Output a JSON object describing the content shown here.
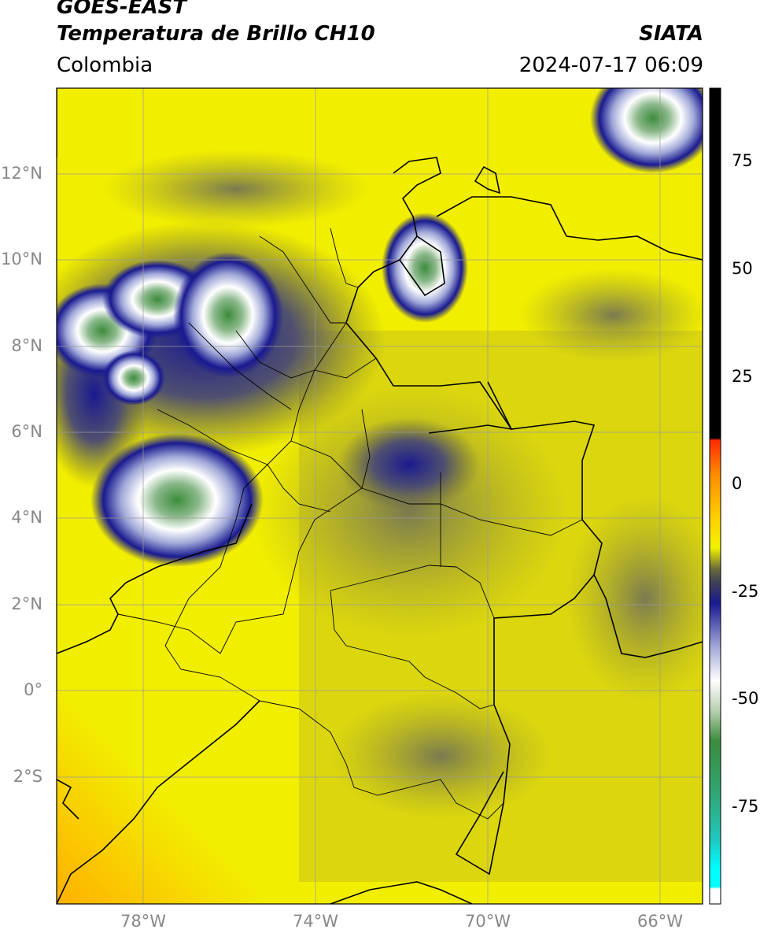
{
  "header": {
    "satellite": "GOES-EAST",
    "product": "Temperatura de Brillo CH10",
    "agency": "SIATA",
    "region": "Colombia",
    "datetime": "2024-07-17 06:09"
  },
  "axes": {
    "lat_labels": [
      "12°N",
      "10°N",
      "8°N",
      "6°N",
      "4°N",
      "2°N",
      "0°",
      "2°S"
    ],
    "lon_labels": [
      "78°W",
      "74°W",
      "70°W",
      "66°W"
    ],
    "lat_range": [
      -4.6,
      14
    ],
    "lon_range": [
      -80,
      -65
    ]
  },
  "colorbar": {
    "ticks": [
      "75",
      "50",
      "25",
      "0",
      "-25",
      "-50",
      "-75"
    ],
    "range": [
      -100,
      90
    ],
    "stops": [
      {
        "t": 90,
        "c": "#000000"
      },
      {
        "t": 8.5,
        "c": "#000000"
      },
      {
        "t": 8,
        "c": "#ff2a00"
      },
      {
        "t": 0,
        "c": "#ff8c00"
      },
      {
        "t": -10,
        "c": "#ffd000"
      },
      {
        "t": -17,
        "c": "#f2f200"
      },
      {
        "t": -22,
        "c": "#6a6a3a"
      },
      {
        "t": -25,
        "c": "#404055"
      },
      {
        "t": -30,
        "c": "#1a1a90"
      },
      {
        "t": -40,
        "c": "#a0a8d8"
      },
      {
        "t": -48,
        "c": "#ffffff"
      },
      {
        "t": -55,
        "c": "#b8d0b0"
      },
      {
        "t": -62,
        "c": "#3c8c3c"
      },
      {
        "t": -75,
        "c": "#30a878"
      },
      {
        "t": -85,
        "c": "#20c8c0"
      },
      {
        "t": -92,
        "c": "#00ffff"
      },
      {
        "t": -96,
        "c": "#00ffff"
      },
      {
        "t": -96.5,
        "c": "#ffffff"
      },
      {
        "t": -100,
        "c": "#ffffff"
      }
    ]
  },
  "colors": {
    "background_warm": "#f2ea00",
    "clear_sky": "#f5f200",
    "cold_cloud": "#1a1a90",
    "very_cold_cloud": "#3c8c3c"
  }
}
